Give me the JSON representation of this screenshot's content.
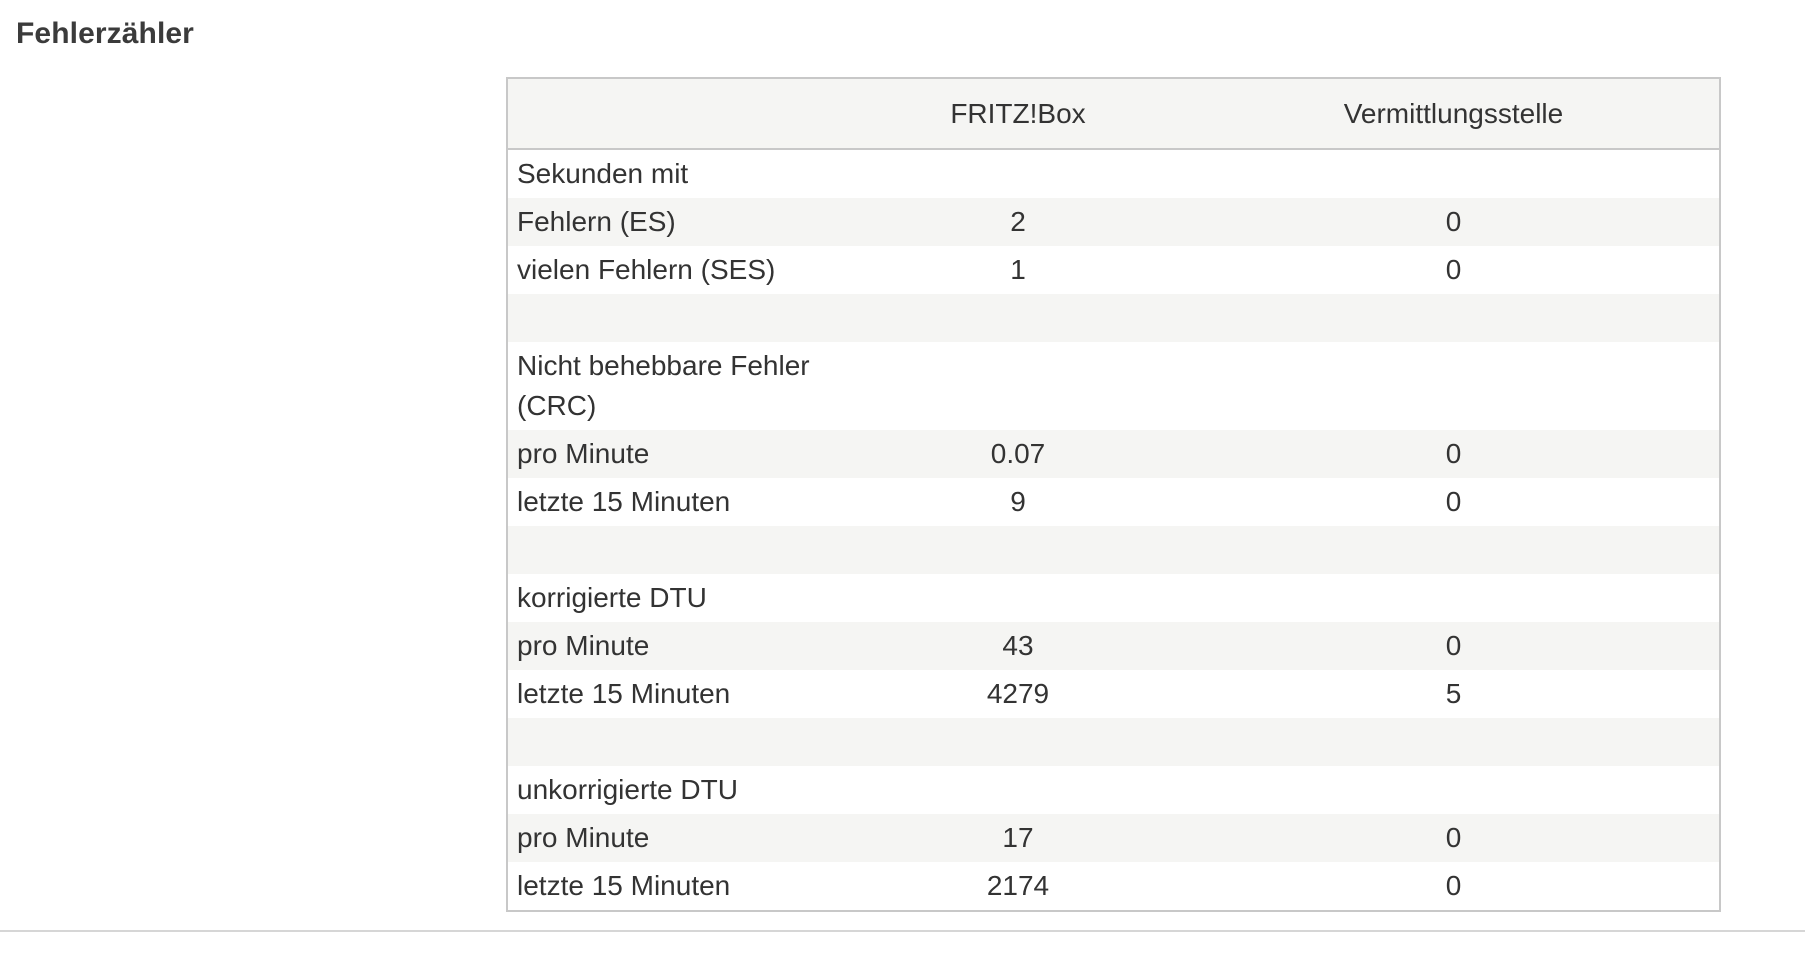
{
  "section": {
    "title": "Fehlerzähler"
  },
  "table": {
    "headers": [
      "",
      "FRITZ!Box",
      "Vermittlungsstelle"
    ],
    "rows": [
      {
        "label": "Sekunden mit",
        "fritz": "",
        "vst": ""
      },
      {
        "label": "Fehlern (ES)",
        "fritz": "2",
        "vst": "0"
      },
      {
        "label": "vielen Fehlern (SES)",
        "fritz": "1",
        "vst": "0"
      },
      {
        "label": "",
        "fritz": "",
        "vst": ""
      },
      {
        "label": "Nicht behebbare Fehler (CRC)",
        "fritz": "",
        "vst": ""
      },
      {
        "label": "pro Minute",
        "fritz": "0.07",
        "vst": "0"
      },
      {
        "label": "letzte 15 Minuten",
        "fritz": "9",
        "vst": "0"
      },
      {
        "label": "",
        "fritz": "",
        "vst": ""
      },
      {
        "label": "korrigierte DTU",
        "fritz": "",
        "vst": ""
      },
      {
        "label": "pro Minute",
        "fritz": "43",
        "vst": "0"
      },
      {
        "label": "letzte 15 Minuten",
        "fritz": "4279",
        "vst": "5"
      },
      {
        "label": "",
        "fritz": "",
        "vst": ""
      },
      {
        "label": "unkorrigierte DTU",
        "fritz": "",
        "vst": ""
      },
      {
        "label": "pro Minute",
        "fritz": "17",
        "vst": "0"
      },
      {
        "label": "letzte 15 Minuten",
        "fritz": "2174",
        "vst": "0"
      }
    ]
  }
}
